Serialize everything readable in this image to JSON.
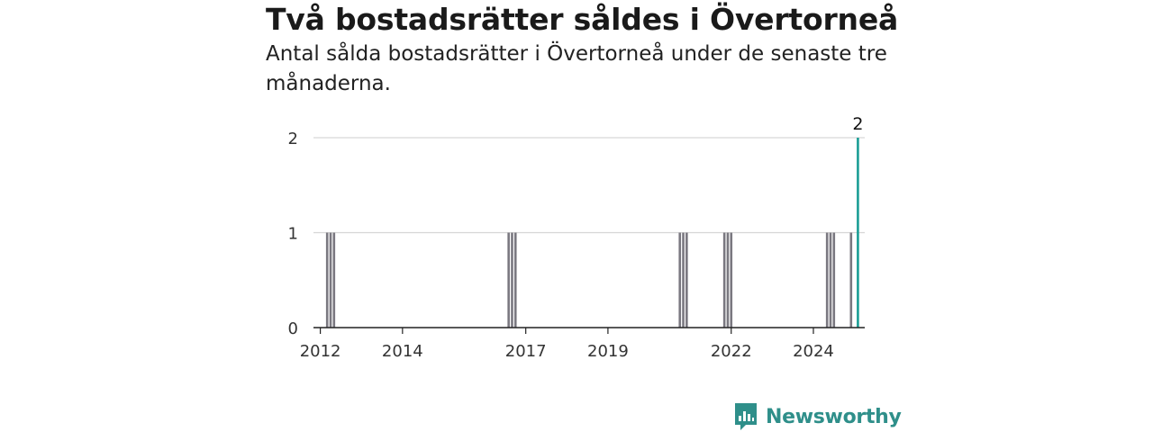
{
  "title": "Två bostadsrätter såldes i Övertorneå",
  "subtitle": "Antal sålda bostadsrätter i Övertorneå under de senaste tre månaderna.",
  "brand": {
    "name": "Newsworthy",
    "icon": "newsworthy-logo-icon",
    "color": "#2f8f8a"
  },
  "chart_data": {
    "type": "bar",
    "x_unit": "month",
    "xlim": [
      "2011-11",
      "2025-04"
    ],
    "ylim": [
      0,
      2
    ],
    "y_ticks": [
      0,
      1,
      2
    ],
    "x_ticks": [
      "2012",
      "2014",
      "2017",
      "2019",
      "2022",
      "2024"
    ],
    "grid": true,
    "colors": {
      "past": "#7a7880",
      "latest": "#1a9e95"
    },
    "series": [
      {
        "points": [
          {
            "x": "2012-03",
            "y": 1
          },
          {
            "x": "2012-04",
            "y": 1
          },
          {
            "x": "2012-05",
            "y": 1
          },
          {
            "x": "2016-08",
            "y": 1
          },
          {
            "x": "2016-09",
            "y": 1
          },
          {
            "x": "2016-10",
            "y": 1
          },
          {
            "x": "2020-10",
            "y": 1
          },
          {
            "x": "2020-11",
            "y": 1
          },
          {
            "x": "2020-12",
            "y": 1
          },
          {
            "x": "2021-11",
            "y": 1
          },
          {
            "x": "2021-12",
            "y": 1
          },
          {
            "x": "2022-01",
            "y": 1
          },
          {
            "x": "2024-05",
            "y": 1
          },
          {
            "x": "2024-06",
            "y": 1
          },
          {
            "x": "2024-07",
            "y": 1
          },
          {
            "x": "2024-12",
            "y": 1
          },
          {
            "x": "2025-02",
            "y": 2
          }
        ]
      }
    ],
    "latest_label": "2"
  }
}
